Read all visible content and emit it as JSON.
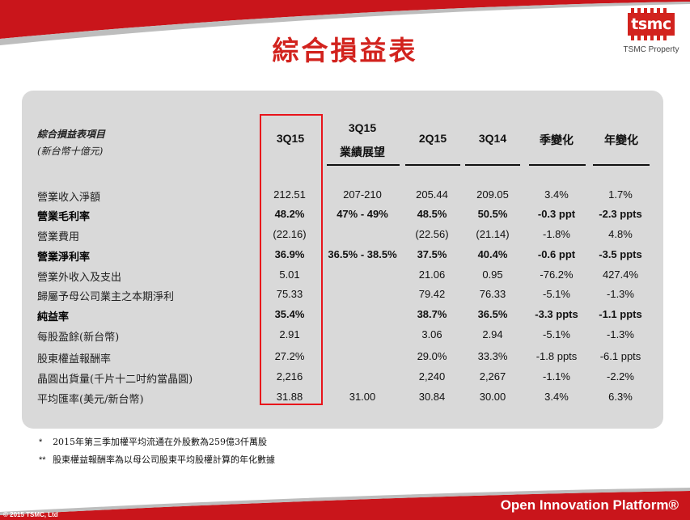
{
  "header": {
    "title": "綜合損益表",
    "logo_text": "tsmc",
    "logo_caption": "TSMC Property"
  },
  "table": {
    "title_line1": "綜合損益表項目",
    "title_line2": "(新台幣十億元)",
    "columns": [
      {
        "line1": "3Q15",
        "line2": ""
      },
      {
        "line1": "3Q15",
        "line2": "業績展望"
      },
      {
        "line1": "2Q15",
        "line2": ""
      },
      {
        "line1": "3Q14",
        "line2": ""
      },
      {
        "line1": "季變化",
        "line2": ""
      },
      {
        "line1": "年變化",
        "line2": ""
      }
    ],
    "rows": [
      {
        "label": "營業收入淨額",
        "bold": false,
        "values": [
          "212.51",
          "207-210",
          "205.44",
          "209.05",
          "3.4%",
          "1.7%"
        ]
      },
      {
        "label": "營業毛利率",
        "bold": true,
        "values": [
          "48.2%",
          "47% - 49%",
          "48.5%",
          "50.5%",
          "-0.3 ppt",
          "-2.3 ppts"
        ]
      },
      {
        "label": "營業費用",
        "bold": false,
        "values": [
          "(22.16)",
          "",
          "(22.56)",
          "(21.14)",
          "-1.8%",
          "4.8%"
        ]
      },
      {
        "label": "營業淨利率",
        "bold": true,
        "values": [
          "36.9%",
          "36.5% - 38.5%",
          "37.5%",
          "40.4%",
          "-0.6 ppt",
          "-3.5 ppts"
        ]
      },
      {
        "label": "營業外收入及支出",
        "bold": false,
        "values": [
          "5.01",
          "",
          "21.06",
          "0.95",
          "-76.2%",
          "427.4%"
        ]
      },
      {
        "label": "歸屬予母公司業主之本期淨利",
        "bold": false,
        "values": [
          "75.33",
          "",
          "79.42",
          "76.33",
          "-5.1%",
          "-1.3%"
        ]
      },
      {
        "label": "純益率",
        "bold": true,
        "values": [
          "35.4%",
          "",
          "38.7%",
          "36.5%",
          "-3.3 ppts",
          "-1.1 ppts"
        ]
      },
      {
        "label": "每股盈餘(新台幣)",
        "bold": false,
        "values": [
          "2.91",
          "",
          "3.06",
          "2.94",
          "-5.1%",
          "-1.3%"
        ]
      },
      {
        "label": "股東權益報酬率",
        "bold": false,
        "values": [
          "27.2%",
          "",
          "29.0%",
          "33.3%",
          "-1.8 ppts",
          "-6.1 ppts"
        ]
      },
      {
        "label": "晶圓出貨量(千片十二吋約當晶圓)",
        "bold": false,
        "values": [
          "2,216",
          "",
          "2,240",
          "2,267",
          "-1.1%",
          "-2.2%"
        ]
      },
      {
        "label": "平均匯率(美元/新台幣)",
        "bold": false,
        "values": [
          "31.88",
          "31.00",
          "30.84",
          "30.00",
          "3.4%",
          "6.3%"
        ]
      }
    ]
  },
  "footnotes": [
    {
      "mark": "*",
      "text": "2015年第三季加權平均流通在外股數為259億3仟萬股"
    },
    {
      "mark": "**",
      "text": "股東權益報酬率為以母公司股東平均股權計算的年化數據"
    }
  ],
  "footer": {
    "brand": "Open Innovation Platform®",
    "copyright": "© 2015 TSMC, Ltd"
  },
  "colors": {
    "accent_red": "#d2231e",
    "highlight_border": "#e8141b",
    "panel_gray": "#d9d9d9"
  }
}
